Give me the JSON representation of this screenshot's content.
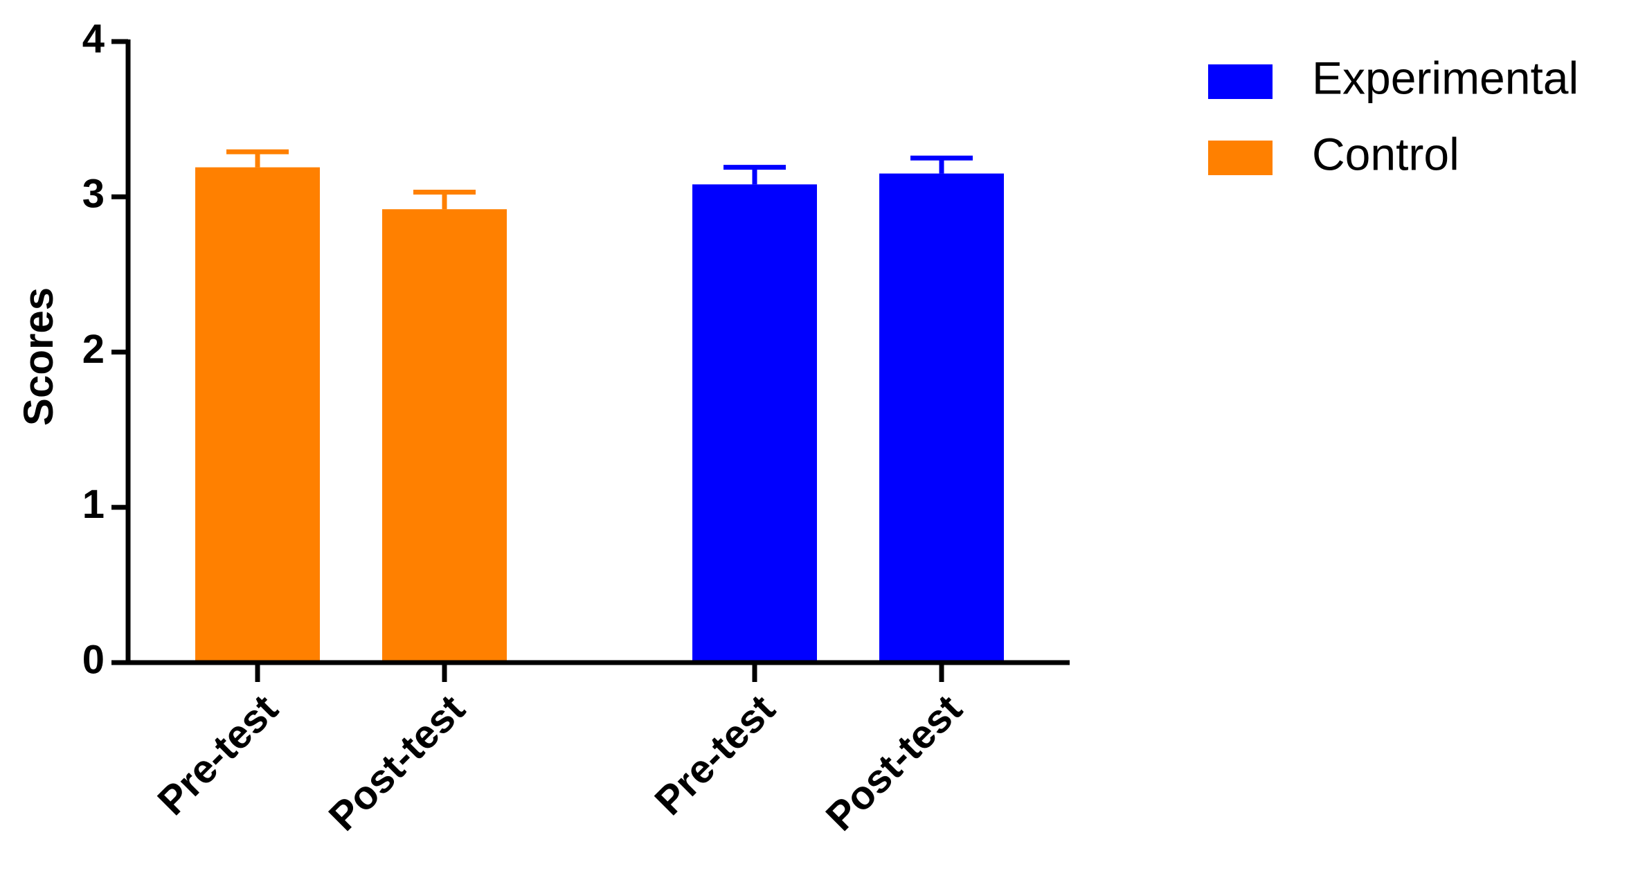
{
  "chart_data": {
    "type": "bar",
    "y_label": "Scores",
    "categories": [
      "Pre-test",
      "Post-test",
      "Pre-test",
      "Post-test"
    ],
    "series": [
      {
        "name": "Experimental",
        "color": "#0000ff",
        "values": [
          null,
          null,
          3.08,
          3.15
        ],
        "errors": [
          null,
          null,
          0.11,
          0.1
        ]
      },
      {
        "name": "Control",
        "color": "#ff8000",
        "values": [
          3.19,
          2.92,
          null,
          null
        ],
        "errors": [
          0.1,
          0.11,
          null,
          null
        ]
      }
    ],
    "ylim": [
      0,
      4
    ],
    "yticks": [
      0,
      1,
      2,
      3,
      4
    ],
    "grid": false,
    "legend": "right"
  }
}
